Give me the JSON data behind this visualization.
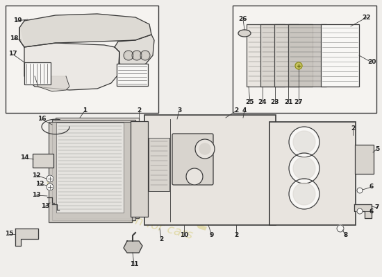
{
  "bg_color": "#f0eeeb",
  "line_color": "#3a3a3a",
  "thin_line": 0.6,
  "med_line": 0.9,
  "thick_line": 1.2,
  "label_fontsize": 6.5,
  "label_color": "#222222",
  "watermark1": "eurolicart",
  "watermark2": "a passion for cars",
  "wm_color": "#d4c870",
  "wm_alpha": 0.5,
  "fill_light": "#e8e4df",
  "fill_medium": "#d8d4ce",
  "fill_dark": "#c8c4be",
  "fill_white": "#f8f7f5",
  "inset_fill": "#f5f3f0"
}
